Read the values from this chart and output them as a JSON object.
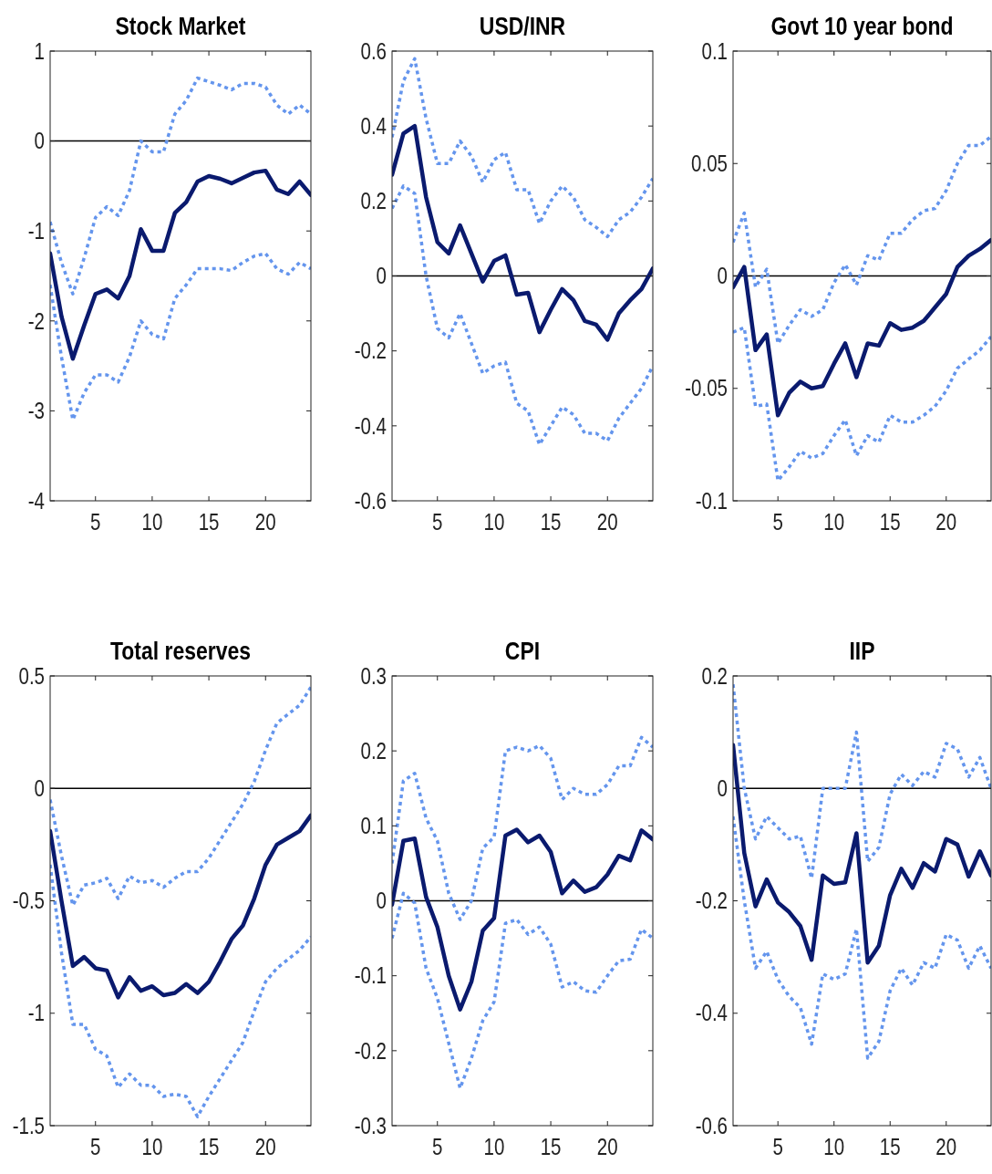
{
  "chart_data": [
    {
      "type": "line",
      "title": "Stock Market",
      "x": [
        1,
        2,
        3,
        4,
        5,
        6,
        7,
        8,
        9,
        10,
        11,
        12,
        13,
        14,
        15,
        16,
        17,
        18,
        19,
        20,
        21,
        22,
        23,
        24
      ],
      "xlim": [
        1,
        24
      ],
      "xticks": [
        5,
        10,
        15,
        20
      ],
      "ylim": [
        -4,
        1
      ],
      "yticks": [
        -4,
        -3,
        -2,
        -1,
        0,
        1
      ],
      "grid": false,
      "ref_lines": [
        {
          "axis": "y",
          "value": 0,
          "color": "#000000"
        }
      ],
      "series": [
        {
          "color": "#6495ed",
          "line_style": "dotted",
          "values": [
            -0.9,
            -1.35,
            -1.7,
            -1.3,
            -0.85,
            -0.73,
            -0.83,
            -0.55,
            0.0,
            -0.12,
            -0.12,
            0.3,
            0.45,
            0.7,
            0.66,
            0.62,
            0.57,
            0.64,
            0.64,
            0.6,
            0.4,
            0.3,
            0.4,
            0.3
          ]
        },
        {
          "color": "#6495ed",
          "line_style": "dotted",
          "values": [
            -1.6,
            -2.4,
            -3.1,
            -2.8,
            -2.6,
            -2.6,
            -2.68,
            -2.4,
            -2.0,
            -2.15,
            -2.2,
            -1.75,
            -1.6,
            -1.42,
            -1.42,
            -1.42,
            -1.44,
            -1.35,
            -1.28,
            -1.25,
            -1.42,
            -1.48,
            -1.35,
            -1.42
          ]
        },
        {
          "color": "#0a1a6e",
          "line_style": "solid",
          "values": [
            -1.25,
            -1.95,
            -2.42,
            -2.05,
            -1.7,
            -1.65,
            -1.75,
            -1.5,
            -0.98,
            -1.22,
            -1.22,
            -0.8,
            -0.68,
            -0.45,
            -0.39,
            -0.42,
            -0.47,
            -0.41,
            -0.35,
            -0.33,
            -0.54,
            -0.59,
            -0.45,
            -0.6
          ]
        }
      ]
    },
    {
      "type": "line",
      "title": "USD/INR",
      "x": [
        1,
        2,
        3,
        4,
        5,
        6,
        7,
        8,
        9,
        10,
        11,
        12,
        13,
        14,
        15,
        16,
        17,
        18,
        19,
        20,
        21,
        22,
        23,
        24
      ],
      "xlim": [
        1,
        24
      ],
      "xticks": [
        5,
        10,
        15,
        20
      ],
      "ylim": [
        -0.6,
        0.6
      ],
      "yticks": [
        -0.6,
        -0.4,
        -0.2,
        0,
        0.2,
        0.4,
        0.6
      ],
      "grid": false,
      "ref_lines": [
        {
          "axis": "y",
          "value": 0,
          "color": "#000000"
        }
      ],
      "series": [
        {
          "color": "#6495ed",
          "line_style": "dotted",
          "values": [
            0.37,
            0.52,
            0.58,
            0.42,
            0.3,
            0.3,
            0.36,
            0.32,
            0.25,
            0.31,
            0.33,
            0.23,
            0.23,
            0.14,
            0.2,
            0.24,
            0.21,
            0.15,
            0.13,
            0.105,
            0.15,
            0.17,
            0.21,
            0.26
          ]
        },
        {
          "color": "#6495ed",
          "line_style": "dotted",
          "values": [
            0.18,
            0.24,
            0.22,
            0.0,
            -0.14,
            -0.165,
            -0.1,
            -0.18,
            -0.26,
            -0.24,
            -0.23,
            -0.34,
            -0.36,
            -0.45,
            -0.4,
            -0.35,
            -0.37,
            -0.42,
            -0.42,
            -0.44,
            -0.38,
            -0.34,
            -0.3,
            -0.24
          ]
        },
        {
          "color": "#0a1a6e",
          "line_style": "solid",
          "values": [
            0.27,
            0.38,
            0.4,
            0.21,
            0.09,
            0.06,
            0.135,
            0.06,
            -0.015,
            0.04,
            0.055,
            -0.05,
            -0.045,
            -0.15,
            -0.09,
            -0.035,
            -0.065,
            -0.12,
            -0.13,
            -0.17,
            -0.1,
            -0.065,
            -0.035,
            0.02
          ]
        }
      ]
    },
    {
      "type": "line",
      "title": "Govt 10 year bond",
      "x": [
        1,
        2,
        3,
        4,
        5,
        6,
        7,
        8,
        9,
        10,
        11,
        12,
        13,
        14,
        15,
        16,
        17,
        18,
        19,
        20,
        21,
        22,
        23,
        24
      ],
      "xlim": [
        1,
        24
      ],
      "xticks": [
        5,
        10,
        15,
        20
      ],
      "ylim": [
        -0.1,
        0.1
      ],
      "yticks": [
        -0.1,
        -0.05,
        0,
        0.05,
        0.1
      ],
      "grid": false,
      "ref_lines": [
        {
          "axis": "y",
          "value": 0,
          "color": "#000000"
        }
      ],
      "series": [
        {
          "color": "#6495ed",
          "line_style": "dotted",
          "values": [
            0.015,
            0.028,
            -0.005,
            0.003,
            -0.03,
            -0.022,
            -0.015,
            -0.018,
            -0.015,
            -0.003,
            0.005,
            -0.004,
            0.009,
            0.007,
            0.019,
            0.019,
            0.025,
            0.029,
            0.03,
            0.038,
            0.05,
            0.058,
            0.058,
            0.062
          ]
        },
        {
          "color": "#6495ed",
          "line_style": "dotted",
          "values": [
            -0.025,
            -0.023,
            -0.058,
            -0.057,
            -0.091,
            -0.085,
            -0.078,
            -0.081,
            -0.079,
            -0.071,
            -0.064,
            -0.08,
            -0.071,
            -0.074,
            -0.062,
            -0.065,
            -0.065,
            -0.062,
            -0.058,
            -0.051,
            -0.041,
            -0.037,
            -0.033,
            -0.027
          ]
        },
        {
          "color": "#0a1a6e",
          "line_style": "solid",
          "values": [
            -0.005,
            0.004,
            -0.033,
            -0.026,
            -0.062,
            -0.052,
            -0.047,
            -0.05,
            -0.049,
            -0.039,
            -0.03,
            -0.045,
            -0.03,
            -0.031,
            -0.021,
            -0.024,
            -0.023,
            -0.02,
            -0.014,
            -0.008,
            0.004,
            0.009,
            0.012,
            0.016
          ]
        }
      ]
    },
    {
      "type": "line",
      "title": "Total reserves",
      "x": [
        1,
        2,
        3,
        4,
        5,
        6,
        7,
        8,
        9,
        10,
        11,
        12,
        13,
        14,
        15,
        16,
        17,
        18,
        19,
        20,
        21,
        22,
        23,
        24
      ],
      "xlim": [
        1,
        24
      ],
      "xticks": [
        5,
        10,
        15,
        20
      ],
      "ylim": [
        -1.5,
        0.5
      ],
      "yticks": [
        -1.5,
        -1,
        -0.5,
        0,
        0.5
      ],
      "grid": false,
      "ref_lines": [
        {
          "axis": "y",
          "value": 0,
          "color": "#000000"
        }
      ],
      "series": [
        {
          "color": "#6495ed",
          "line_style": "dotted",
          "values": [
            -0.05,
            -0.3,
            -0.52,
            -0.43,
            -0.42,
            -0.4,
            -0.49,
            -0.39,
            -0.42,
            -0.41,
            -0.44,
            -0.4,
            -0.37,
            -0.37,
            -0.31,
            -0.23,
            -0.15,
            -0.07,
            0.03,
            0.17,
            0.29,
            0.33,
            0.37,
            0.45
          ]
        },
        {
          "color": "#6495ed",
          "line_style": "dotted",
          "values": [
            -0.34,
            -0.73,
            -1.05,
            -1.05,
            -1.16,
            -1.19,
            -1.33,
            -1.27,
            -1.32,
            -1.32,
            -1.37,
            -1.36,
            -1.37,
            -1.46,
            -1.37,
            -1.29,
            -1.21,
            -1.13,
            -0.99,
            -0.86,
            -0.8,
            -0.76,
            -0.72,
            -0.66
          ]
        },
        {
          "color": "#0a1a6e",
          "line_style": "solid",
          "values": [
            -0.19,
            -0.5,
            -0.79,
            -0.75,
            -0.8,
            -0.81,
            -0.93,
            -0.84,
            -0.9,
            -0.88,
            -0.92,
            -0.91,
            -0.87,
            -0.91,
            -0.86,
            -0.77,
            -0.67,
            -0.61,
            -0.49,
            -0.34,
            -0.25,
            -0.22,
            -0.19,
            -0.12
          ]
        }
      ]
    },
    {
      "type": "line",
      "title": "CPI",
      "x": [
        1,
        2,
        3,
        4,
        5,
        6,
        7,
        8,
        9,
        10,
        11,
        12,
        13,
        14,
        15,
        16,
        17,
        18,
        19,
        20,
        21,
        22,
        23,
        24
      ],
      "xlim": [
        1,
        24
      ],
      "xticks": [
        5,
        10,
        15,
        20
      ],
      "ylim": [
        -0.3,
        0.3
      ],
      "yticks": [
        -0.3,
        -0.2,
        -0.1,
        0,
        0.1,
        0.2,
        0.3
      ],
      "grid": false,
      "ref_lines": [
        {
          "axis": "y",
          "value": 0,
          "color": "#000000"
        }
      ],
      "series": [
        {
          "color": "#6495ed",
          "line_style": "dotted",
          "values": [
            0.05,
            0.16,
            0.17,
            0.11,
            0.08,
            0.01,
            -0.025,
            0.0,
            0.07,
            0.085,
            0.2,
            0.205,
            0.2,
            0.207,
            0.19,
            0.135,
            0.15,
            0.142,
            0.142,
            0.155,
            0.18,
            0.18,
            0.218,
            0.205
          ]
        },
        {
          "color": "#6495ed",
          "line_style": "dotted",
          "values": [
            -0.05,
            0.01,
            -0.003,
            -0.09,
            -0.13,
            -0.19,
            -0.25,
            -0.21,
            -0.16,
            -0.135,
            -0.03,
            -0.025,
            -0.045,
            -0.035,
            -0.058,
            -0.115,
            -0.108,
            -0.12,
            -0.122,
            -0.1,
            -0.08,
            -0.078,
            -0.038,
            -0.05
          ]
        },
        {
          "color": "#0a1a6e",
          "line_style": "solid",
          "values": [
            -0.005,
            0.08,
            0.083,
            0.005,
            -0.035,
            -0.1,
            -0.145,
            -0.108,
            -0.04,
            -0.023,
            0.087,
            0.095,
            0.078,
            0.087,
            0.065,
            0.01,
            0.027,
            0.012,
            0.018,
            0.035,
            0.06,
            0.054,
            0.094,
            0.082
          ]
        }
      ]
    },
    {
      "type": "line",
      "title": "IIP",
      "x": [
        1,
        2,
        3,
        4,
        5,
        6,
        7,
        8,
        9,
        10,
        11,
        12,
        13,
        14,
        15,
        16,
        17,
        18,
        19,
        20,
        21,
        22,
        23,
        24
      ],
      "xlim": [
        1,
        24
      ],
      "xticks": [
        5,
        10,
        15,
        20
      ],
      "ylim": [
        -0.6,
        0.2
      ],
      "yticks": [
        -0.6,
        -0.4,
        -0.2,
        0,
        0.2
      ],
      "grid": false,
      "ref_lines": [
        {
          "axis": "y",
          "value": 0,
          "color": "#000000"
        }
      ],
      "series": [
        {
          "color": "#6495ed",
          "line_style": "dotted",
          "values": [
            0.185,
            0.0,
            -0.09,
            -0.05,
            -0.07,
            -0.09,
            -0.085,
            -0.16,
            0.0,
            0.0,
            0.0,
            0.1,
            -0.13,
            -0.105,
            -0.01,
            0.025,
            0.005,
            0.03,
            0.02,
            0.08,
            0.07,
            0.02,
            0.055,
            0.0
          ]
        },
        {
          "color": "#6495ed",
          "line_style": "dotted",
          "values": [
            -0.05,
            -0.2,
            -0.32,
            -0.29,
            -0.34,
            -0.37,
            -0.39,
            -0.455,
            -0.33,
            -0.34,
            -0.33,
            -0.25,
            -0.48,
            -0.45,
            -0.36,
            -0.32,
            -0.35,
            -0.31,
            -0.32,
            -0.26,
            -0.27,
            -0.32,
            -0.28,
            -0.32
          ]
        },
        {
          "color": "#0a1a6e",
          "line_style": "solid",
          "values": [
            0.077,
            -0.115,
            -0.21,
            -0.162,
            -0.203,
            -0.22,
            -0.245,
            -0.305,
            -0.155,
            -0.17,
            -0.167,
            -0.08,
            -0.31,
            -0.28,
            -0.19,
            -0.143,
            -0.177,
            -0.133,
            -0.148,
            -0.09,
            -0.1,
            -0.157,
            -0.112,
            -0.155
          ]
        }
      ]
    }
  ]
}
